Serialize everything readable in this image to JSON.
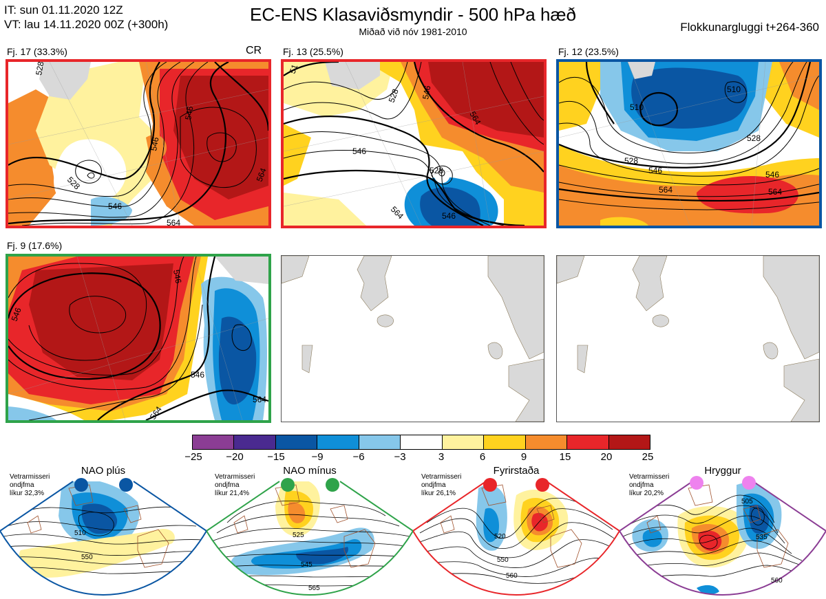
{
  "header": {
    "it_line": "IT: sun 01.11.2020 12Z",
    "vt_line": "VT: lau 14.11.2020 00Z  (+300h)",
    "title": "EC-ENS Klasaviðsmyndir - 500 hPa hæð",
    "subtitle": "Miðað við nóv 1981-2010",
    "window": "Flokkunargluggi t+264-360"
  },
  "colors": {
    "red": "#e8262a",
    "blue": "#0a56a3",
    "green": "#2fa34a",
    "purple": "#8b3d94",
    "magenta": "#ee82ee",
    "land": "#d9d9d9"
  },
  "clusters": [
    {
      "label": "Fj. 17 (33.3%)",
      "border": "#e8262a",
      "extra": "CR",
      "contours": [
        "528",
        "546",
        "546",
        "546",
        "564",
        "564",
        "528"
      ]
    },
    {
      "label": "Fj. 13 (25.5%)",
      "border": "#e8262a",
      "contours": [
        "51",
        "528",
        "546",
        "546",
        "528",
        "546",
        "564",
        "564"
      ]
    },
    {
      "label": "Fj. 12 (23.5%)",
      "border": "#0a56a3",
      "contours": [
        "510",
        "510",
        "528",
        "528",
        "546",
        "546",
        "564",
        "564"
      ]
    },
    {
      "label": "Fj. 9 (17.6%)",
      "border": "#2fa34a",
      "contours": [
        "546",
        "546",
        "546",
        "564",
        "564"
      ]
    }
  ],
  "colorbar": {
    "colors": [
      "#8b3d94",
      "#4a2a90",
      "#0a56a3",
      "#0f8fd8",
      "#86c7ea",
      "#ffffff",
      "#fff29e",
      "#ffd21f",
      "#f58c2d",
      "#e8262a",
      "#b31717"
    ],
    "labels": [
      "−25",
      "−20",
      "−15",
      "−9",
      "−6",
      "−3",
      "3",
      "6",
      "9",
      "15",
      "20",
      "25"
    ]
  },
  "regimes": [
    {
      "name": "NAO plús",
      "note": [
        "Vetrarmisseri",
        "ondjfma",
        "líkur 32,3%"
      ],
      "color": "#0a56a3",
      "contours": [
        "510",
        "550"
      ]
    },
    {
      "name": "NAO mínus",
      "note": [
        "Vetrarmisseri",
        "ondjfma",
        "líkur 21,4%"
      ],
      "color": "#2fa34a",
      "contours": [
        "525",
        "545",
        "565"
      ]
    },
    {
      "name": "Fyrirstaða",
      "note": [
        "Vetrarmisseri",
        "ondjfma",
        "líkur 26,1%"
      ],
      "color": "#e8262a",
      "contours": [
        "520",
        "550",
        "560"
      ]
    },
    {
      "name": "Hryggur",
      "note": [
        "Vetrarmisseri",
        "ondjfma",
        "líkur 20,2%"
      ],
      "color": "#8b3d94",
      "contours": [
        "505",
        "535",
        "560"
      ]
    }
  ]
}
